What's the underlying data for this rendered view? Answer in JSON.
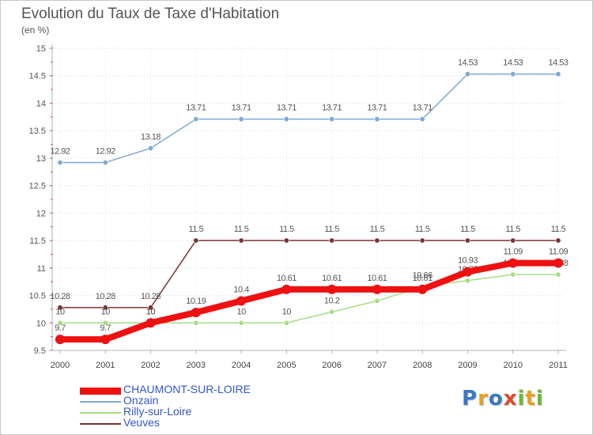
{
  "chart_data": {
    "type": "line",
    "title": "Evolution du Taux de Taxe d'Habitation",
    "ylabel": "(en %)",
    "xlabel": "",
    "x": [
      "2000",
      "2001",
      "2002",
      "2003",
      "2004",
      "2005",
      "2006",
      "2007",
      "2008",
      "2009",
      "2010",
      "2011"
    ],
    "ylim": [
      9.5,
      15
    ],
    "yticks": [
      "9.5",
      "10",
      "10.5",
      "11",
      "11.5",
      "12",
      "12.5",
      "13",
      "13.5",
      "14",
      "14.5",
      "15"
    ],
    "series": [
      {
        "name": "CHAUMONT-SUR-LOIRE",
        "color": "#ee1111",
        "values": [
          9.7,
          9.7,
          10,
          10.19,
          10.4,
          10.61,
          10.61,
          10.61,
          10.61,
          10.93,
          11.09,
          11.09
        ],
        "labels": [
          "9.7",
          "9.7",
          "10",
          "10.19",
          "10.4",
          "10.61",
          "10.61",
          "10.61",
          "10.61",
          "10.93",
          "11.09",
          "11.09"
        ]
      },
      {
        "name": "Onzain",
        "color": "#7ea8d4",
        "values": [
          12.92,
          12.92,
          13.18,
          13.71,
          13.71,
          13.71,
          13.71,
          13.71,
          13.71,
          14.53,
          14.53,
          14.53
        ],
        "labels": [
          "12.92",
          "12.92",
          "13.18",
          "13.71",
          "13.71",
          "13.71",
          "13.71",
          "13.71",
          "13.71",
          "14.53",
          "14.53",
          "14.53"
        ]
      },
      {
        "name": "Rilly-sur-Loire",
        "color": "#a6dd82",
        "values": [
          10,
          10,
          10,
          10,
          10,
          10,
          10.2,
          10.4,
          10.66,
          10.77,
          10.88,
          10.88
        ],
        "labels": [
          "10",
          "10",
          "10",
          "10",
          "10",
          "10",
          "10.2",
          "10.4",
          "10.66",
          "10.77",
          "10.88",
          "10.88"
        ]
      },
      {
        "name": "Veuves",
        "color": "#7a3333",
        "values": [
          10.28,
          10.28,
          10.28,
          11.5,
          11.5,
          11.5,
          11.5,
          11.5,
          11.5,
          11.5,
          11.5,
          11.5
        ],
        "labels": [
          "10.28",
          "10.28",
          "10.28",
          "11.5",
          "11.5",
          "11.5",
          "11.5",
          "11.5",
          "11.5",
          "11.5",
          "11.5",
          "11.5"
        ]
      }
    ]
  },
  "logo": {
    "letters": [
      {
        "char": "P",
        "color": "#3a78c2"
      },
      {
        "char": "r",
        "color": "#e8a020"
      },
      {
        "char": "o",
        "color": "#3a78c2"
      },
      {
        "char": "x",
        "color": "#e24a2a"
      },
      {
        "char": "i",
        "color": "#6bb83a"
      },
      {
        "char": "t",
        "color": "#e8a020"
      },
      {
        "char": "i",
        "color": "#6bb83a"
      }
    ]
  }
}
